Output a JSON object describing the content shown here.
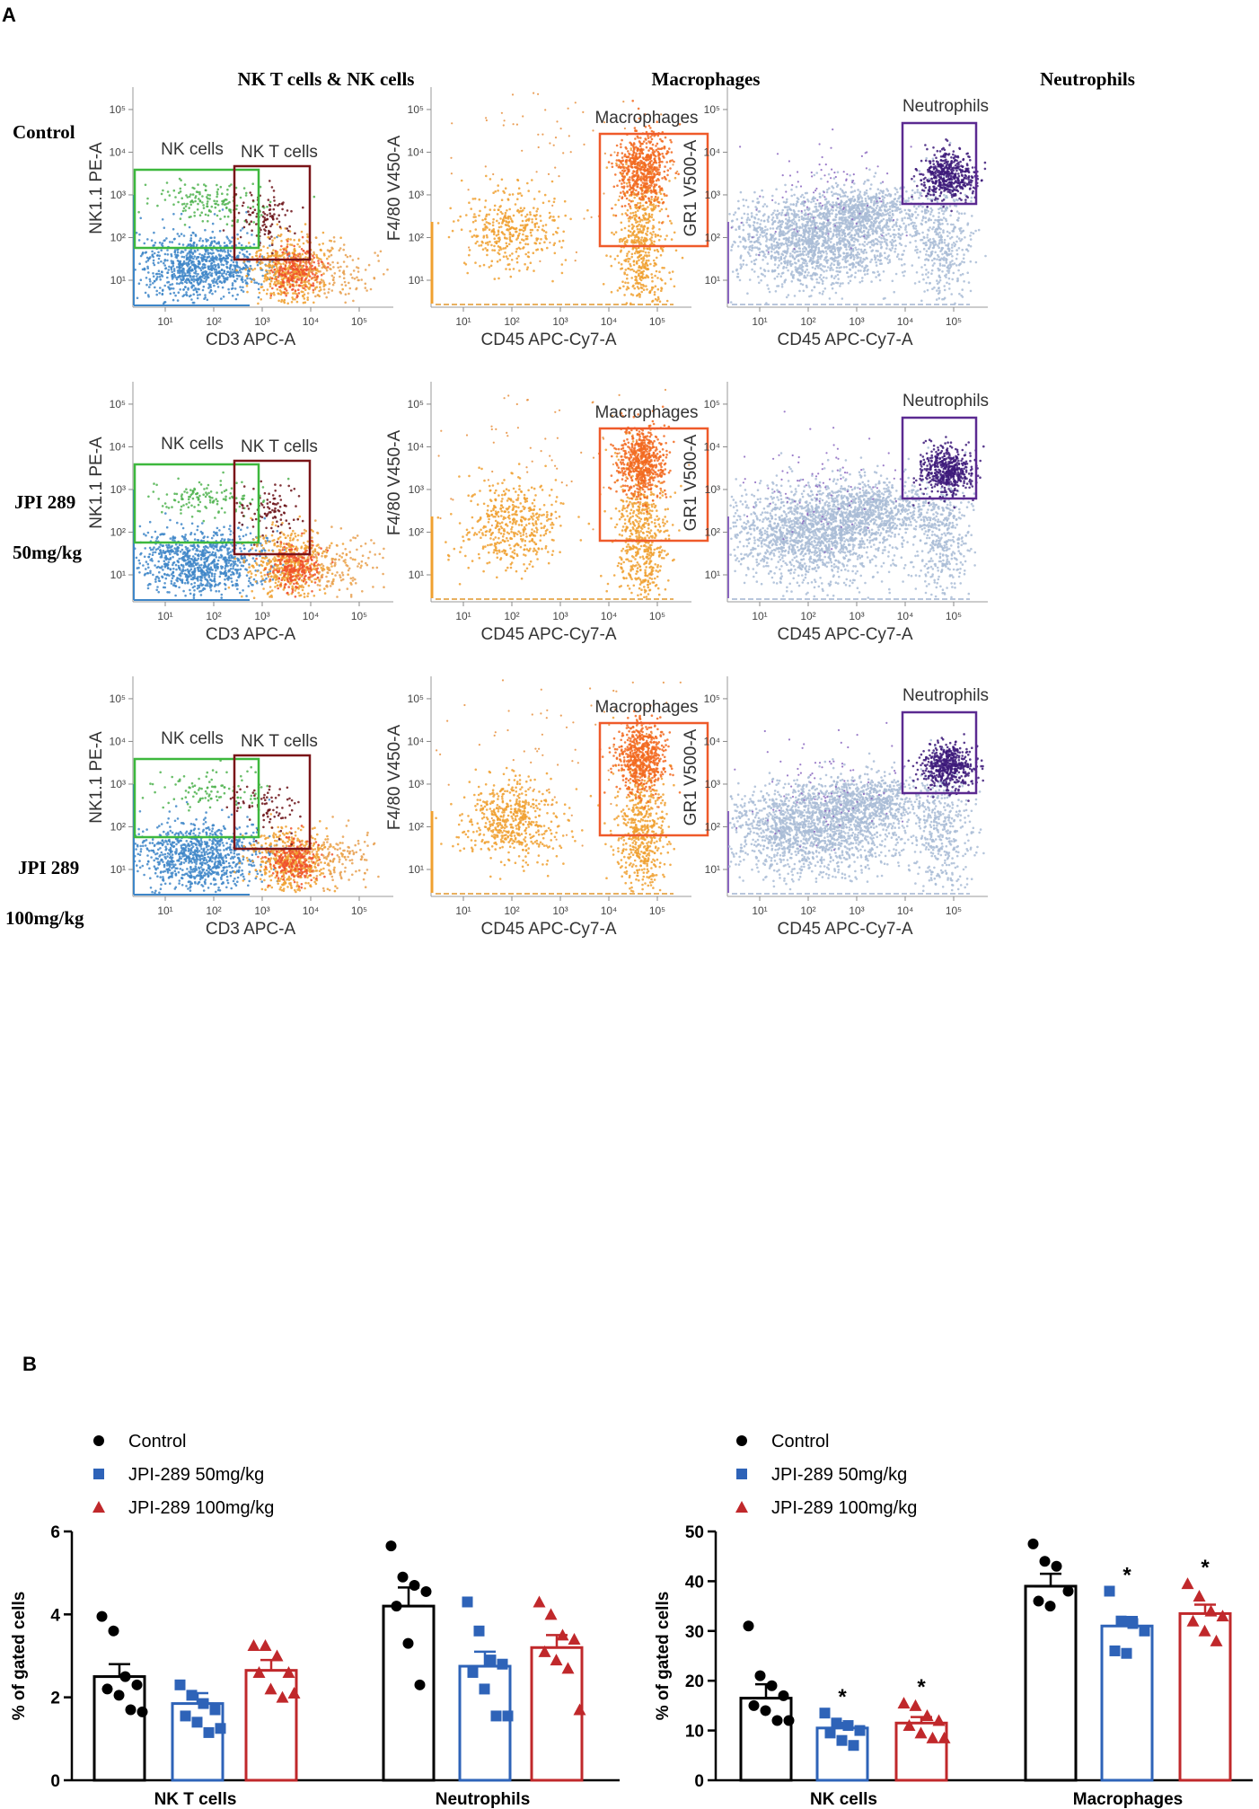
{
  "panel_labels": {
    "a": "A",
    "b": "B"
  },
  "column_titles": [
    "NK T cells & NK cells",
    "Macrophages",
    "Neutrophils"
  ],
  "row_labels": [
    {
      "line1": "Control",
      "line2": ""
    },
    {
      "line1": "JPI 289",
      "line2": "50mg/kg"
    },
    {
      "line1": "JPI 289",
      "line2": "100mg/kg"
    }
  ],
  "log_ticks": [
    "10¹",
    "10²",
    "10³",
    "10⁴",
    "10⁵"
  ],
  "flow_plots": [
    {
      "x_label": "CD3 APC-A",
      "y_label": "NK1.1 PE-A",
      "gates": [
        "NK cells",
        "NK T cells"
      ]
    },
    {
      "x_label": "CD45 APC-Cy7-A",
      "y_label": "F4/80 V450-A",
      "gates": [
        "Macrophages"
      ]
    },
    {
      "x_label": "CD45 APC-Cy7-A",
      "y_label": "GR1 V500-A",
      "gates": [
        "Neutrophils"
      ]
    }
  ],
  "colors": {
    "control": "#000000",
    "jpi50": "#2e63b8",
    "jpi100": "#c0282b",
    "nk_gate": "#3db83d",
    "nkt_gate": "#7a1418",
    "mac_gate": "#ef5a2a",
    "neu_gate": "#5b2a91",
    "nk_dots": "#4fb34f",
    "nkt_dots": "#6b1218",
    "blue_dots": "#3e86c8",
    "orange_dots": "#f0a030",
    "red_orange_dots": "#f0502a",
    "mac_dots": "#f26a20",
    "lightblue_dots": "#a9bcd6",
    "neu_dots": "#3d1a7a",
    "purple_dots": "#8a66c0"
  },
  "chart_data": [
    {
      "type": "bar",
      "title": "",
      "categories": [
        "NK T cells",
        "Neutrophils"
      ],
      "ylabel": "% of gated cells",
      "xlabel": "",
      "ylim": [
        0,
        6
      ],
      "yticks": [
        0,
        2,
        4,
        6
      ],
      "legend": [
        "Control",
        "JPI-289 50mg/kg",
        "JPI-289 100mg/kg"
      ],
      "series": [
        {
          "name": "Control",
          "marker": "circle",
          "values": [
            2.5,
            4.2
          ],
          "sem": [
            0.3,
            0.45
          ],
          "points": [
            [
              3.95,
              3.6,
              2.5,
              2.3,
              2.2,
              2.05,
              1.7,
              1.65
            ],
            [
              5.65,
              4.9,
              4.7,
              4.55,
              4.2,
              3.3,
              2.3
            ]
          ]
        },
        {
          "name": "JPI-289 50mg/kg",
          "marker": "square",
          "values": [
            1.85,
            2.75
          ],
          "sem": [
            0.25,
            0.35
          ],
          "points": [
            [
              2.3,
              2.05,
              1.85,
              1.7,
              1.55,
              1.4,
              1.15,
              1.25
            ],
            [
              4.3,
              3.6,
              2.9,
              2.8,
              2.6,
              2.2,
              1.55,
              1.55
            ]
          ]
        },
        {
          "name": "JPI-289 100mg/kg",
          "marker": "triangle",
          "values": [
            2.65,
            3.2
          ],
          "sem": [
            0.25,
            0.3
          ],
          "points": [
            [
              3.25,
              3.25,
              3.0,
              2.6,
              2.6,
              2.2,
              2.0,
              2.1
            ],
            [
              4.3,
              4.0,
              3.5,
              3.4,
              3.1,
              2.9,
              2.7,
              1.7
            ]
          ]
        }
      ],
      "annotations": []
    },
    {
      "type": "bar",
      "title": "",
      "categories": [
        "NK cells",
        "Macrophages"
      ],
      "ylabel": "% of gated cells",
      "xlabel": "",
      "ylim": [
        0,
        50
      ],
      "yticks": [
        0,
        10,
        20,
        30,
        40,
        50
      ],
      "legend": [
        "Control",
        "JPI-289 50mg/kg",
        "JPI-289 100mg/kg"
      ],
      "series": [
        {
          "name": "Control",
          "marker": "circle",
          "values": [
            16.5,
            39
          ],
          "sem": [
            2.8,
            2.5
          ],
          "points": [
            [
              31,
              21,
              19,
              17,
              15,
              14,
              12,
              12
            ],
            [
              47.5,
              44,
              43,
              38,
              36,
              35
            ]
          ],
          "significance": [
            "",
            ""
          ]
        },
        {
          "name": "JPI-289 50mg/kg",
          "marker": "square",
          "values": [
            10.5,
            31
          ],
          "sem": [
            1.0,
            1.8
          ],
          "points": [
            [
              13.5,
              11.5,
              11,
              10,
              9.5,
              8,
              7
            ],
            [
              38,
              32,
              31.5,
              30,
              26,
              25.5
            ]
          ],
          "significance": [
            "*",
            "*"
          ]
        },
        {
          "name": "JPI-289 100mg/kg",
          "marker": "triangle",
          "values": [
            11.5,
            33.5
          ],
          "sem": [
            1.2,
            1.8
          ],
          "points": [
            [
              15.5,
              15,
              13,
              12,
              11,
              9.5,
              8.5,
              8.5
            ],
            [
              39.5,
              37,
              34,
              33,
              32,
              30,
              28
            ]
          ],
          "significance": [
            "*",
            "*"
          ]
        }
      ],
      "annotations": [
        "*",
        "*",
        "*",
        "*"
      ]
    }
  ]
}
